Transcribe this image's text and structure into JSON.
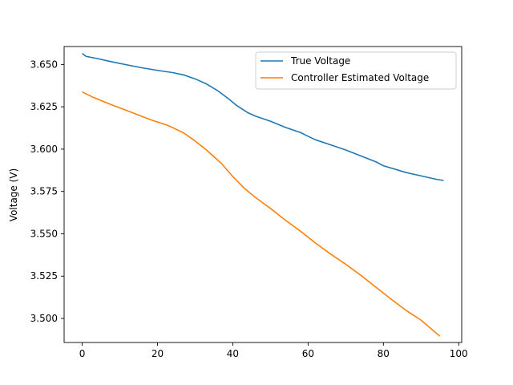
{
  "chart_data": {
    "type": "line",
    "title": "",
    "xlabel": "",
    "ylabel": "Voltage (V)",
    "xlim": [
      -4.8,
      100.8
    ],
    "ylim": [
      3.4858,
      3.6606
    ],
    "x_ticks": [
      0,
      20,
      40,
      60,
      80,
      100
    ],
    "y_ticks": [
      3.5,
      3.525,
      3.55,
      3.575,
      3.6,
      3.625,
      3.65
    ],
    "grid": false,
    "legend_position": "top-right",
    "series": [
      {
        "name": "True Voltage",
        "color": "#1f77b4",
        "x": [
          0,
          1,
          4,
          8,
          12,
          16,
          20,
          24,
          27,
          30,
          33,
          36,
          39,
          41,
          44,
          46,
          50,
          54,
          58,
          61,
          62,
          66,
          70,
          74,
          78,
          80,
          86,
          90,
          94,
          96
        ],
        "y": [
          3.6565,
          3.6548,
          3.6535,
          3.6515,
          3.6497,
          3.648,
          3.6465,
          3.6452,
          3.6438,
          3.6415,
          3.6385,
          3.6345,
          3.6295,
          3.6258,
          3.6215,
          3.6195,
          3.6165,
          3.6128,
          3.6098,
          3.6065,
          3.6055,
          3.6025,
          3.5995,
          3.596,
          3.5925,
          3.5902,
          3.5862,
          3.5842,
          3.5822,
          3.5815
        ]
      },
      {
        "name": "Controller Estimated Voltage",
        "color": "#ff7f0e",
        "x": [
          0,
          3,
          8,
          13,
          18,
          23,
          27,
          30,
          33,
          37,
          40,
          43,
          46,
          50,
          54,
          58,
          62,
          66,
          70,
          74,
          78,
          82,
          86,
          90,
          95
        ],
        "y": [
          3.6338,
          3.6305,
          3.626,
          3.6218,
          3.6175,
          3.6138,
          3.6095,
          3.6048,
          3.5995,
          3.5915,
          3.5838,
          3.577,
          3.5715,
          3.565,
          3.558,
          3.5515,
          3.5445,
          3.538,
          3.532,
          3.5255,
          3.5185,
          3.5115,
          3.5048,
          3.499,
          3.4895
        ]
      }
    ]
  }
}
